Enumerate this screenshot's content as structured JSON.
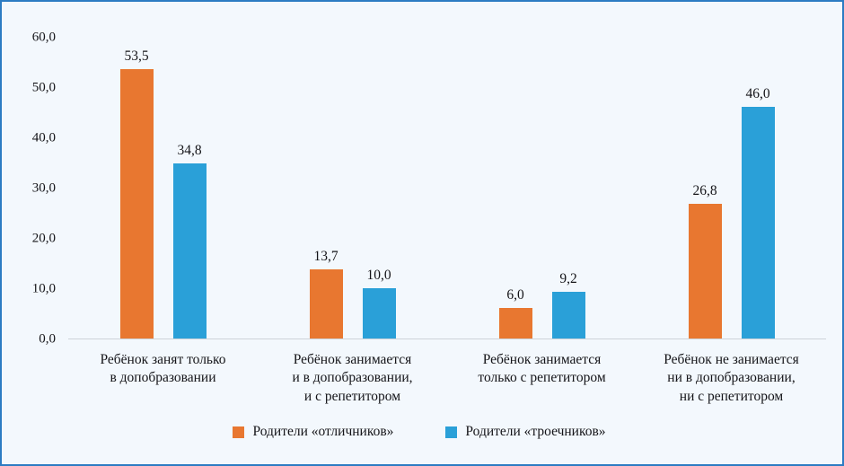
{
  "chart_data": {
    "type": "bar",
    "title": "",
    "categories": [
      "Ребёнок занят только\nв допобразовании",
      "Ребёнок занимается\nи в допобразовании,\nи с репетитором",
      "Ребёнок занимается\nтолько с репетитором",
      "Ребёнок не занимается\nни в допобразовании,\nни с репетитором"
    ],
    "series": [
      {
        "name": "Родители «отличников»",
        "color": "#e87730",
        "values": [
          53.5,
          13.7,
          6.0,
          26.8
        ]
      },
      {
        "name": "Родители «троечников»",
        "color": "#2aa0d8",
        "values": [
          34.8,
          10.0,
          9.2,
          46.0
        ]
      }
    ],
    "value_labels": [
      [
        "53,5",
        "13,7",
        "6,0",
        "26,8"
      ],
      [
        "34,8",
        "10,0",
        "9,2",
        "46,0"
      ]
    ],
    "ylim": [
      0,
      60
    ],
    "yticks": [
      "60,0",
      "50,0",
      "40,0",
      "30,0",
      "20,0",
      "10,0",
      "0,0"
    ],
    "grid": false,
    "legend_position": "bottom"
  },
  "colors": {
    "background": "#f3f8fd",
    "border": "#2c7cc3",
    "axis_line": "#cdd3d9",
    "text": "#141418",
    "series_orange": "#e87730",
    "series_blue": "#2aa0d8"
  }
}
